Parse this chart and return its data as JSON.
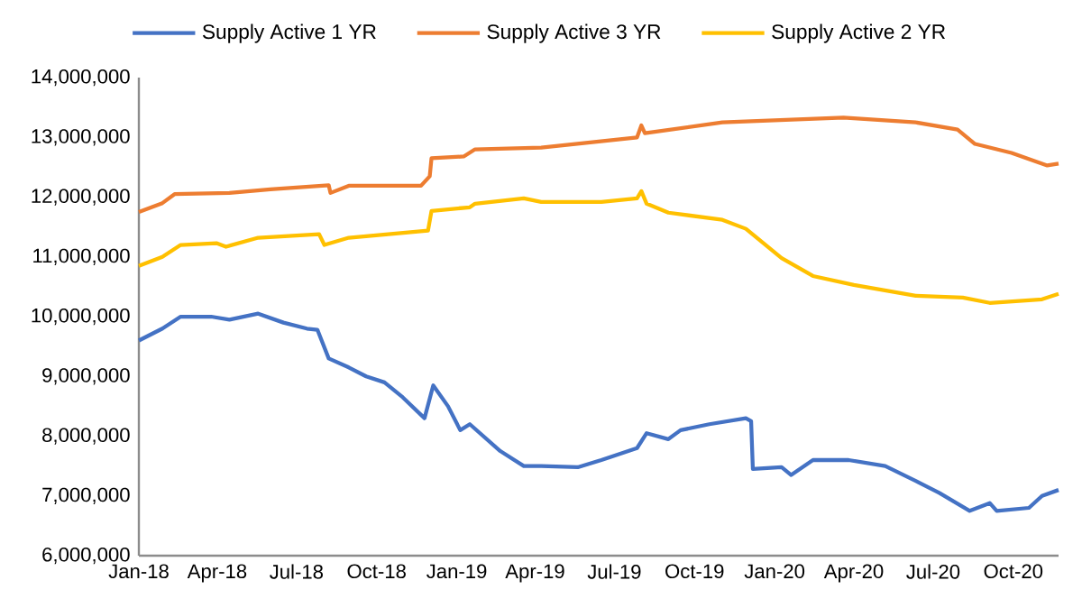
{
  "chart_data": {
    "type": "line",
    "legend": "top",
    "grid": false,
    "marker": "none",
    "line_style": "solid",
    "xlim": [
      "2018-01-01",
      "2020-11-22"
    ],
    "xticks": [
      {
        "value": "2018-01-01",
        "label": "Jan-18"
      },
      {
        "value": "2018-04-01",
        "label": "Apr-18"
      },
      {
        "value": "2018-07-01",
        "label": "Jul-18"
      },
      {
        "value": "2018-10-01",
        "label": "Oct-18"
      },
      {
        "value": "2019-01-01",
        "label": "Jan-19"
      },
      {
        "value": "2019-04-01",
        "label": "Apr-19"
      },
      {
        "value": "2019-07-01",
        "label": "Jul-19"
      },
      {
        "value": "2019-10-01",
        "label": "Oct-19"
      },
      {
        "value": "2020-01-01",
        "label": "Jan-20"
      },
      {
        "value": "2020-04-01",
        "label": "Apr-20"
      },
      {
        "value": "2020-07-01",
        "label": "Jul-20"
      },
      {
        "value": "2020-10-01",
        "label": "Oct-20"
      }
    ],
    "ylim": [
      6000000,
      14000000
    ],
    "yticks": [
      {
        "value": 6000000,
        "label": "6,000,000"
      },
      {
        "value": 7000000,
        "label": "7,000,000"
      },
      {
        "value": 8000000,
        "label": "8,000,000"
      },
      {
        "value": 9000000,
        "label": "9,000,000"
      },
      {
        "value": 10000000,
        "label": "10,000,000"
      },
      {
        "value": 11000000,
        "label": "11,000,000"
      },
      {
        "value": 12000000,
        "label": "12,000,000"
      },
      {
        "value": 13000000,
        "label": "13,000,000"
      },
      {
        "value": 14000000,
        "label": "14,000,000"
      }
    ],
    "series": [
      {
        "name": "Supply Active 1 YR",
        "color": "#4472c4",
        "x": [
          "2018-01-01",
          "2018-01-28",
          "2018-02-18",
          "2018-03-25",
          "2018-04-15",
          "2018-05-18",
          "2018-06-16",
          "2018-07-13",
          "2018-07-25",
          "2018-08-07",
          "2018-08-30",
          "2018-09-19",
          "2018-10-10",
          "2018-10-31",
          "2018-11-25",
          "2018-12-05",
          "2018-12-22",
          "2019-01-05",
          "2019-01-16",
          "2019-02-20",
          "2019-03-19",
          "2019-04-08",
          "2019-05-20",
          "2019-06-16",
          "2019-07-27",
          "2019-08-07",
          "2019-09-01",
          "2019-09-15",
          "2019-10-18",
          "2019-11-29",
          "2019-12-05",
          "2019-12-07",
          "2020-01-09",
          "2020-01-20",
          "2020-02-14",
          "2020-03-26",
          "2020-05-07",
          "2020-06-11",
          "2020-07-08",
          "2020-08-12",
          "2020-09-04",
          "2020-09-12",
          "2020-10-19",
          "2020-11-03",
          "2020-11-22"
        ],
        "values": [
          9600000,
          9800000,
          10000000,
          10000000,
          9950000,
          10050000,
          9900000,
          9800000,
          9780000,
          9300000,
          9150000,
          9000000,
          8900000,
          8650000,
          8300000,
          8850000,
          8500000,
          8100000,
          8200000,
          7750000,
          7500000,
          7500000,
          7480000,
          7600000,
          7800000,
          8050000,
          7950000,
          8100000,
          8200000,
          8300000,
          8250000,
          7450000,
          7480000,
          7350000,
          7600000,
          7600000,
          7500000,
          7250000,
          7050000,
          6750000,
          6880000,
          6750000,
          6800000,
          7000000,
          7100000
        ]
      },
      {
        "name": "Supply Active 3 YR",
        "color": "#ed7d31",
        "x": [
          "2018-01-01",
          "2018-01-28",
          "2018-02-11",
          "2018-04-15",
          "2018-06-01",
          "2018-08-07",
          "2018-08-09",
          "2018-08-30",
          "2018-11-21",
          "2018-12-01",
          "2018-12-03",
          "2019-01-09",
          "2019-01-22",
          "2019-04-08",
          "2019-07-27",
          "2019-08-01",
          "2019-08-05",
          "2019-11-02",
          "2020-03-20",
          "2020-06-11",
          "2020-07-29",
          "2020-08-18",
          "2020-09-29",
          "2020-11-09",
          "2020-11-22"
        ],
        "values": [
          11750000,
          11900000,
          12050000,
          12070000,
          12130000,
          12200000,
          12070000,
          12190000,
          12190000,
          12350000,
          12650000,
          12680000,
          12800000,
          12830000,
          13000000,
          13200000,
          13070000,
          13250000,
          13330000,
          13250000,
          13130000,
          12890000,
          12740000,
          12530000,
          12560000
        ]
      },
      {
        "name": "Supply Active 2 YR",
        "color": "#ffc000",
        "x": [
          "2018-01-01",
          "2018-01-28",
          "2018-02-18",
          "2018-03-31",
          "2018-04-11",
          "2018-05-18",
          "2018-07-27",
          "2018-08-02",
          "2018-08-30",
          "2018-11-29",
          "2018-12-03",
          "2019-01-16",
          "2019-01-22",
          "2019-03-19",
          "2019-04-08",
          "2019-06-16",
          "2019-07-27",
          "2019-08-01",
          "2019-08-07",
          "2019-09-01",
          "2019-11-02",
          "2019-11-29",
          "2020-01-09",
          "2020-02-14",
          "2020-04-01",
          "2020-06-11",
          "2020-08-04",
          "2020-09-04",
          "2020-11-03",
          "2020-11-22"
        ],
        "values": [
          10850000,
          11000000,
          11200000,
          11230000,
          11170000,
          11320000,
          11380000,
          11200000,
          11320000,
          11440000,
          11770000,
          11830000,
          11890000,
          11980000,
          11920000,
          11920000,
          11980000,
          12100000,
          11890000,
          11740000,
          11620000,
          11470000,
          10980000,
          10680000,
          10530000,
          10350000,
          10320000,
          10230000,
          10290000,
          10380000
        ]
      }
    ]
  }
}
